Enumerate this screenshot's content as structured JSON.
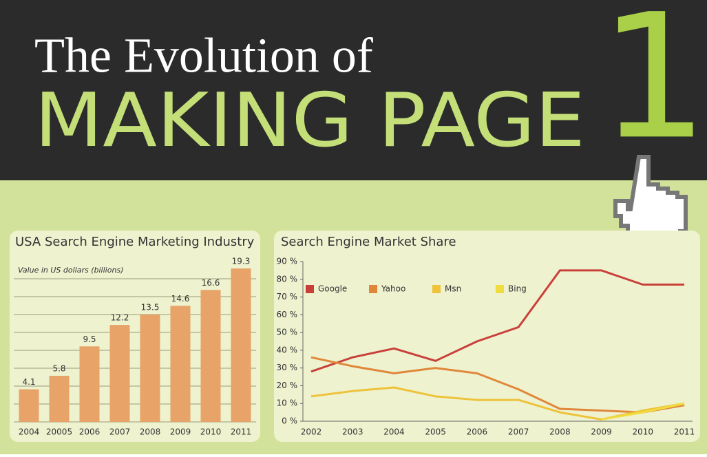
{
  "header": {
    "line1": "The Evolution of",
    "line2": "MAKING PAGE",
    "number": "1"
  },
  "chart_data": [
    {
      "type": "bar",
      "title": "USA Search Engine Marketing Industry",
      "subtitle": "Value in US dollars (billions)",
      "categories": [
        "2004",
        "20005",
        "2006",
        "2007",
        "2008",
        "2009",
        "2010",
        "2011"
      ],
      "values": [
        4.1,
        5.8,
        9.5,
        12.2,
        13.5,
        14.6,
        16.6,
        19.3
      ],
      "color": "#e8a468",
      "ylim": [
        0,
        20
      ]
    },
    {
      "type": "line",
      "title": "Search Engine Market Share",
      "categories": [
        "2002",
        "2003",
        "2004",
        "2005",
        "2006",
        "2007",
        "2008",
        "2009",
        "2010",
        "2011"
      ],
      "ylim": [
        0,
        90
      ],
      "yticks": [
        {
          "value": 0,
          "label": "0 %"
        },
        {
          "value": 10,
          "label": "10 %"
        },
        {
          "value": 20,
          "label": "20 %"
        },
        {
          "value": 30,
          "label": "30 %"
        },
        {
          "value": 40,
          "label": "40 %"
        },
        {
          "value": 50,
          "label": "50 %"
        },
        {
          "value": 60,
          "label": "60 %"
        },
        {
          "value": 70,
          "label": "70 %"
        },
        {
          "value": 80,
          "label": "80 %"
        },
        {
          "value": 90,
          "label": "90 %"
        }
      ],
      "legend": "upper-left",
      "series": [
        {
          "name": "Google",
          "color": "#c9403a",
          "values": [
            28,
            36,
            41,
            34,
            45,
            53,
            85,
            85,
            77,
            77
          ]
        },
        {
          "name": "Yahoo",
          "color": "#e0873a",
          "values": [
            36,
            31,
            27,
            30,
            27,
            18,
            7,
            6,
            5,
            9
          ]
        },
        {
          "name": "Msn",
          "color": "#eec23a",
          "values": [
            14,
            17,
            19,
            14,
            12,
            12,
            5,
            1,
            6,
            10
          ]
        },
        {
          "name": "Bing",
          "color": "#f0dc40",
          "values": [
            null,
            null,
            null,
            null,
            null,
            null,
            null,
            1,
            5,
            10
          ]
        }
      ]
    }
  ]
}
